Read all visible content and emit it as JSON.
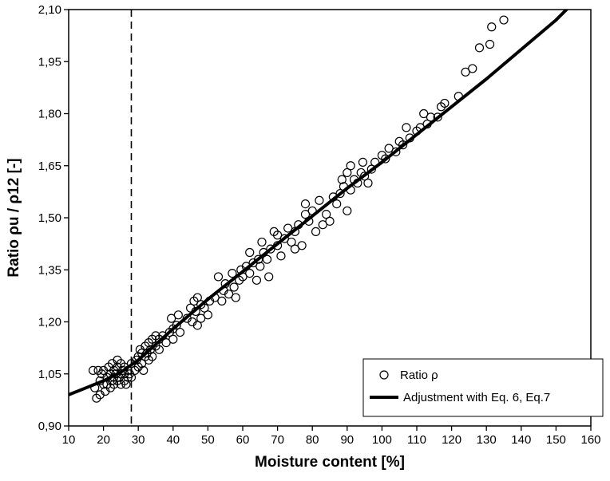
{
  "chart_data": {
    "type": "scatter",
    "xlabel": "Moisture content [%]",
    "ylabel": "Ratio ρu / ρ12 [-]",
    "xlim": [
      10,
      160
    ],
    "ylim": [
      0.9,
      2.1
    ],
    "x_ticks": [
      "10",
      "20",
      "30",
      "40",
      "50",
      "60",
      "70",
      "80",
      "90",
      "100",
      "110",
      "120",
      "130",
      "140",
      "150",
      "160"
    ],
    "y_ticks": [
      "0,90",
      "1,05",
      "1,20",
      "1,35",
      "1,50",
      "1,65",
      "1,80",
      "1,95",
      "2,10"
    ],
    "x_tick_values": [
      10,
      20,
      30,
      40,
      50,
      60,
      70,
      80,
      90,
      100,
      110,
      120,
      130,
      140,
      150,
      160
    ],
    "y_tick_values": [
      0.9,
      1.05,
      1.2,
      1.35,
      1.5,
      1.65,
      1.8,
      1.95,
      2.1
    ],
    "vertical_reference_line_x": 28,
    "grid": false,
    "legend_position": "bottom-right",
    "series": [
      {
        "name": "Ratio ρ",
        "kind": "scatter",
        "marker": "open-circle",
        "points": [
          [
            17,
            1.06
          ],
          [
            17.5,
            1.01
          ],
          [
            18,
            0.98
          ],
          [
            18.5,
            1.06
          ],
          [
            19,
            0.99
          ],
          [
            19,
            1.03
          ],
          [
            19.5,
            1.05
          ],
          [
            20,
            1.02
          ],
          [
            20,
            1.06
          ],
          [
            20.5,
            1.0
          ],
          [
            21,
            1.02
          ],
          [
            21,
            1.04
          ],
          [
            21.5,
            1.07
          ],
          [
            22,
            1.01
          ],
          [
            22,
            1.05
          ],
          [
            22.5,
            1.03
          ],
          [
            22.5,
            1.08
          ],
          [
            23,
            1.02
          ],
          [
            23,
            1.04
          ],
          [
            23,
            1.06
          ],
          [
            23.5,
            1.05
          ],
          [
            24,
            1.03
          ],
          [
            24,
            1.07
          ],
          [
            24,
            1.09
          ],
          [
            24.5,
            1.04
          ],
          [
            25,
            1.02
          ],
          [
            25,
            1.05
          ],
          [
            25,
            1.08
          ],
          [
            25.5,
            1.06
          ],
          [
            26,
            1.03
          ],
          [
            26,
            1.05
          ],
          [
            26,
            1.07
          ],
          [
            26.5,
            1.02
          ],
          [
            27,
            1.04
          ],
          [
            27,
            1.06
          ],
          [
            27.5,
            1.05
          ],
          [
            28,
            1.04
          ],
          [
            28,
            1.08
          ],
          [
            29,
            1.06
          ],
          [
            29.5,
            1.09
          ],
          [
            30,
            1.07
          ],
          [
            30,
            1.1
          ],
          [
            30.5,
            1.12
          ],
          [
            31,
            1.08
          ],
          [
            31,
            1.11
          ],
          [
            31.5,
            1.06
          ],
          [
            32,
            1.1
          ],
          [
            32,
            1.13
          ],
          [
            32.5,
            1.11
          ],
          [
            33,
            1.09
          ],
          [
            33,
            1.14
          ],
          [
            33.5,
            1.12
          ],
          [
            34,
            1.1
          ],
          [
            34,
            1.15
          ],
          [
            35,
            1.13
          ],
          [
            35,
            1.16
          ],
          [
            36,
            1.15
          ],
          [
            36,
            1.12
          ],
          [
            37,
            1.16
          ],
          [
            38,
            1.14
          ],
          [
            39,
            1.17
          ],
          [
            39.5,
            1.21
          ],
          [
            40,
            1.18
          ],
          [
            40,
            1.15
          ],
          [
            41,
            1.19
          ],
          [
            41.5,
            1.22
          ],
          [
            42,
            1.17
          ],
          [
            44,
            1.21
          ],
          [
            45,
            1.24
          ],
          [
            45.5,
            1.2
          ],
          [
            46,
            1.26
          ],
          [
            46.5,
            1.23
          ],
          [
            47,
            1.27
          ],
          [
            47,
            1.19
          ],
          [
            48,
            1.25
          ],
          [
            48,
            1.21
          ],
          [
            49,
            1.24
          ],
          [
            50,
            1.22
          ],
          [
            50.5,
            1.26
          ],
          [
            52,
            1.27
          ],
          [
            53,
            1.33
          ],
          [
            54,
            1.26
          ],
          [
            54.5,
            1.29
          ],
          [
            55,
            1.31
          ],
          [
            56,
            1.28
          ],
          [
            57,
            1.34
          ],
          [
            57.5,
            1.3
          ],
          [
            58,
            1.27
          ],
          [
            59,
            1.32
          ],
          [
            59.5,
            1.35
          ],
          [
            60,
            1.33
          ],
          [
            61,
            1.36
          ],
          [
            62,
            1.34
          ],
          [
            62,
            1.4
          ],
          [
            63,
            1.37
          ],
          [
            64,
            1.32
          ],
          [
            64.5,
            1.38
          ],
          [
            65,
            1.36
          ],
          [
            65.5,
            1.43
          ],
          [
            66,
            1.4
          ],
          [
            67,
            1.38
          ],
          [
            67.5,
            1.33
          ],
          [
            68,
            1.41
          ],
          [
            69,
            1.46
          ],
          [
            70,
            1.42
          ],
          [
            70,
            1.45
          ],
          [
            71,
            1.39
          ],
          [
            72,
            1.44
          ],
          [
            73,
            1.47
          ],
          [
            74,
            1.43
          ],
          [
            75,
            1.41
          ],
          [
            75,
            1.46
          ],
          [
            76,
            1.48
          ],
          [
            77,
            1.42
          ],
          [
            78,
            1.51
          ],
          [
            78,
            1.54
          ],
          [
            79,
            1.49
          ],
          [
            80,
            1.52
          ],
          [
            81,
            1.46
          ],
          [
            82,
            1.55
          ],
          [
            83,
            1.48
          ],
          [
            84,
            1.51
          ],
          [
            85,
            1.49
          ],
          [
            86,
            1.56
          ],
          [
            87,
            1.54
          ],
          [
            88,
            1.57
          ],
          [
            88.5,
            1.61
          ],
          [
            89,
            1.59
          ],
          [
            90,
            1.63
          ],
          [
            90,
            1.52
          ],
          [
            91,
            1.58
          ],
          [
            91,
            1.65
          ],
          [
            92,
            1.61
          ],
          [
            93,
            1.6
          ],
          [
            94,
            1.63
          ],
          [
            94.5,
            1.66
          ],
          [
            95,
            1.62
          ],
          [
            96,
            1.6
          ],
          [
            97,
            1.64
          ],
          [
            98,
            1.66
          ],
          [
            100,
            1.68
          ],
          [
            101,
            1.67
          ],
          [
            102,
            1.7
          ],
          [
            104,
            1.69
          ],
          [
            105,
            1.72
          ],
          [
            106,
            1.71
          ],
          [
            107,
            1.76
          ],
          [
            108,
            1.73
          ],
          [
            110,
            1.75
          ],
          [
            111,
            1.76
          ],
          [
            112,
            1.8
          ],
          [
            113,
            1.77
          ],
          [
            114,
            1.79
          ],
          [
            116,
            1.79
          ],
          [
            117,
            1.82
          ],
          [
            118,
            1.83
          ],
          [
            122,
            1.85
          ],
          [
            124,
            1.92
          ],
          [
            126,
            1.93
          ],
          [
            128,
            1.99
          ],
          [
            131,
            2.0
          ],
          [
            131.5,
            2.05
          ],
          [
            135,
            2.07
          ]
        ]
      },
      {
        "name": "Adjustment with Eq. 6, Eq.7",
        "kind": "line",
        "points": [
          [
            10,
            0.99
          ],
          [
            15,
            1.01
          ],
          [
            20,
            1.03
          ],
          [
            25,
            1.055
          ],
          [
            30,
            1.09
          ],
          [
            35,
            1.135
          ],
          [
            40,
            1.18
          ],
          [
            50,
            1.265
          ],
          [
            60,
            1.345
          ],
          [
            70,
            1.425
          ],
          [
            80,
            1.505
          ],
          [
            90,
            1.585
          ],
          [
            100,
            1.66
          ],
          [
            110,
            1.74
          ],
          [
            120,
            1.82
          ],
          [
            130,
            1.9
          ],
          [
            140,
            1.985
          ],
          [
            150,
            2.07
          ],
          [
            154,
            2.11
          ]
        ]
      }
    ]
  }
}
